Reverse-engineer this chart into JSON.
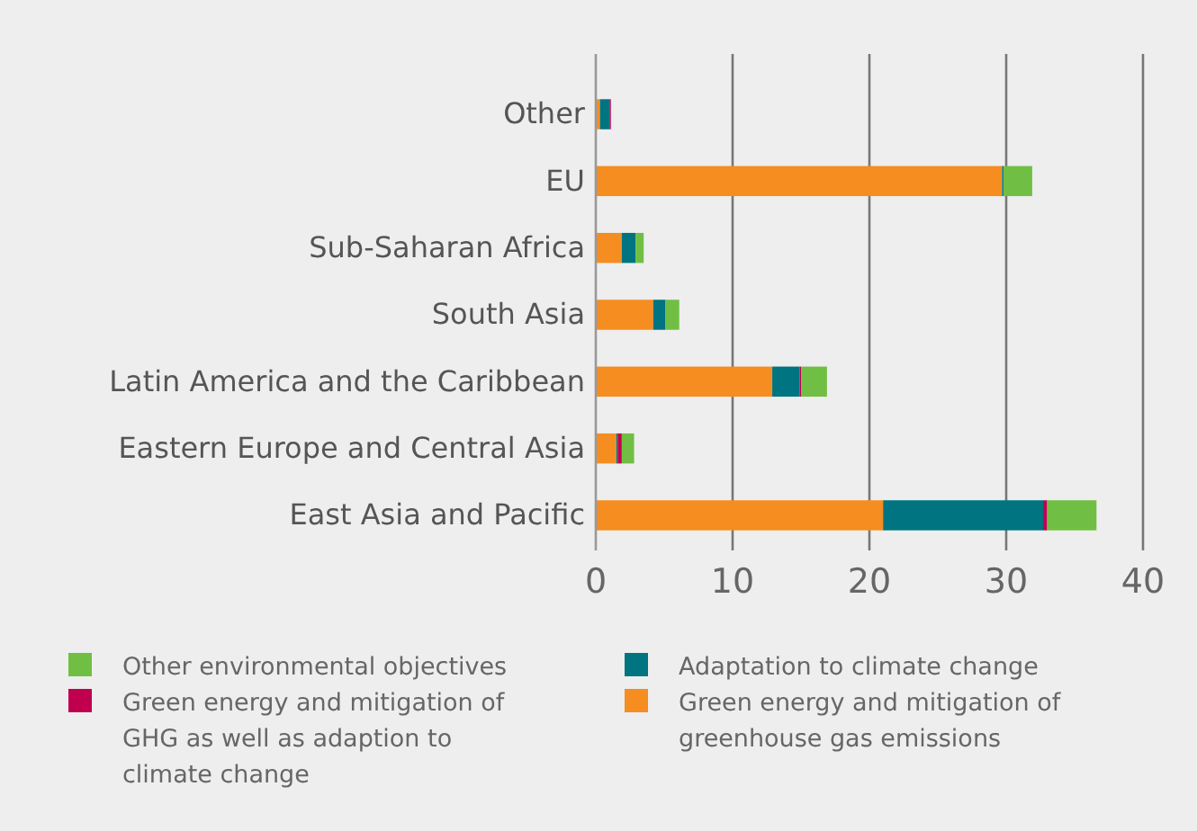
{
  "chart_data": {
    "type": "bar",
    "orientation": "horizontal",
    "stacked": true,
    "categories": [
      "Other",
      "EU",
      "Sub-Saharan Africa",
      "South Asia",
      "Latin America and the Caribbean",
      "Eastern Europe and Central Asia",
      "East Asia and Pacific"
    ],
    "series": [
      {
        "name": "Green energy and mitigation of greenhouse gas emissions",
        "color": "#f58d21",
        "values": [
          0.3,
          29.7,
          1.9,
          4.2,
          12.9,
          1.5,
          21.0
        ]
      },
      {
        "name": "Adaptation to climate change",
        "color": "#007480",
        "values": [
          0.7,
          0.1,
          1.0,
          0.9,
          2.0,
          0.1,
          11.7
        ]
      },
      {
        "name": "Green energy and mitigation of GHG as well as adaption to climate change",
        "color": "#c0004f",
        "values": [
          0.1,
          0,
          0,
          0,
          0.1,
          0.3,
          0.3
        ]
      },
      {
        "name": "Other environmental objectives",
        "color": "#70bf44",
        "values": [
          0,
          2.1,
          0.6,
          1.0,
          1.9,
          0.9,
          3.6
        ]
      }
    ],
    "xlim": [
      0,
      40
    ],
    "xticks": [
      0,
      10,
      20,
      30,
      40
    ],
    "grid": "x",
    "legend": "bottom"
  }
}
